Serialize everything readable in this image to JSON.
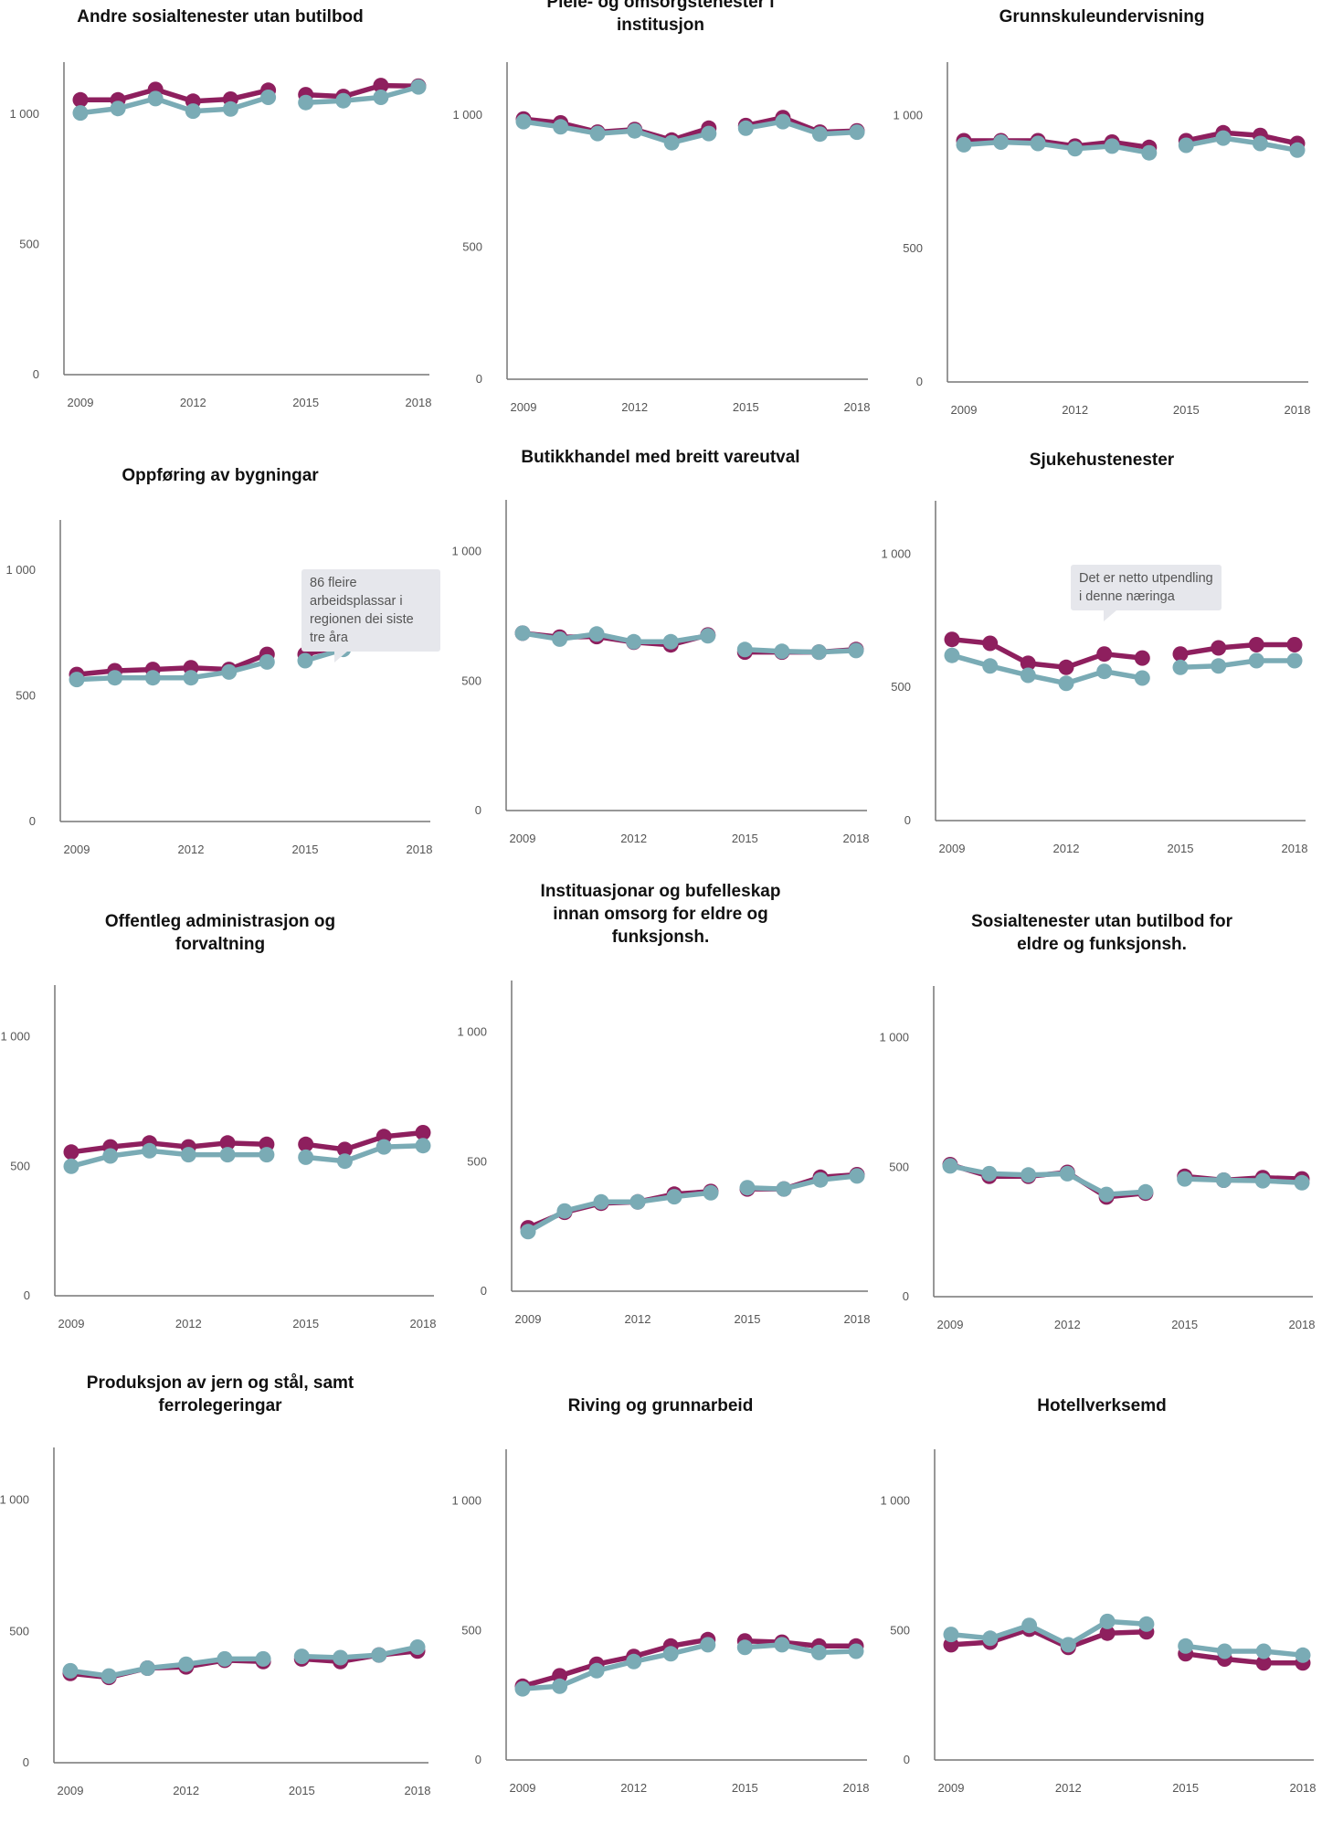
{
  "colors": {
    "series_a": "#8e1f5e",
    "series_b": "#7aabb5",
    "axis": "#777777"
  },
  "chart_data": [
    {
      "type": "line",
      "title": "Andre sosialtenester utan butilbod",
      "x": [
        2009,
        2010,
        2011,
        2012,
        2013,
        2014,
        2015,
        2016,
        2017,
        2018
      ],
      "ylim": [
        0,
        1200
      ],
      "yticks": [
        0,
        500,
        1000
      ],
      "ytick_labels": [
        "0",
        "500",
        "1 000"
      ],
      "xticks": [
        2009,
        2012,
        2015,
        2018
      ],
      "xtick_labels": [
        "2009",
        "2012",
        "2015",
        "2018"
      ],
      "series": [
        {
          "color": "#8e1f5e",
          "values": [
            1055,
            1055,
            1095,
            1050,
            1058,
            1092,
            1075,
            1068,
            1110,
            1108
          ]
        },
        {
          "color": "#7aabb5",
          "values": [
            1005,
            1022,
            1060,
            1012,
            1020,
            1065,
            1045,
            1052,
            1065,
            1105
          ]
        }
      ]
    },
    {
      "type": "line",
      "title": "Pleie- og omsorgstenester i\ninstitusjon",
      "x": [
        2009,
        2010,
        2011,
        2012,
        2013,
        2014,
        2015,
        2016,
        2017,
        2018
      ],
      "ylim": [
        0,
        1200
      ],
      "yticks": [
        0,
        500,
        1000
      ],
      "ytick_labels": [
        "0",
        "500",
        "1 000"
      ],
      "xticks": [
        2009,
        2012,
        2015,
        2018
      ],
      "xtick_labels": [
        "2009",
        "2012",
        "2015",
        "2018"
      ],
      "series": [
        {
          "color": "#8e1f5e",
          "values": [
            985,
            970,
            935,
            945,
            905,
            950,
            960,
            990,
            935,
            940
          ]
        },
        {
          "color": "#7aabb5",
          "values": [
            975,
            955,
            930,
            940,
            895,
            930,
            950,
            975,
            928,
            935
          ]
        }
      ]
    },
    {
      "type": "line",
      "title": "Grunnskuleundervisning",
      "x": [
        2009,
        2010,
        2011,
        2012,
        2013,
        2014,
        2015,
        2016,
        2017,
        2018
      ],
      "ylim": [
        0,
        1200
      ],
      "yticks": [
        0,
        500,
        1000
      ],
      "ytick_labels": [
        "0",
        "500",
        "1 000"
      ],
      "xticks": [
        2009,
        2012,
        2015,
        2018
      ],
      "xtick_labels": [
        "2009",
        "2012",
        "2015",
        "2018"
      ],
      "series": [
        {
          "color": "#8e1f5e",
          "values": [
            905,
            905,
            905,
            885,
            900,
            880,
            905,
            935,
            925,
            895
          ]
        },
        {
          "color": "#7aabb5",
          "values": [
            890,
            900,
            895,
            875,
            885,
            860,
            888,
            915,
            895,
            870
          ]
        }
      ]
    },
    {
      "type": "line",
      "title": "Oppføring av bygningar",
      "x": [
        2009,
        2010,
        2011,
        2012,
        2013,
        2014,
        2015,
        2016,
        2017,
        2018
      ],
      "ylim": [
        0,
        1200
      ],
      "yticks": [
        0,
        500,
        1000
      ],
      "ytick_labels": [
        "0",
        "500",
        "1 000"
      ],
      "xticks": [
        2009,
        2012,
        2015,
        2018
      ],
      "xtick_labels": [
        "2009",
        "2012",
        "2015",
        "2018"
      ],
      "annotation": "86 fleire arbeidsplassar i\nregionen dei siste tre åra",
      "series": [
        {
          "color": "#8e1f5e",
          "values": [
            585,
            600,
            605,
            612,
            605,
            665,
            665,
            700,
            730,
            742
          ]
        },
        {
          "color": "#7aabb5",
          "values": [
            565,
            572,
            572,
            572,
            595,
            635,
            640,
            685,
            715,
            722
          ]
        }
      ]
    },
    {
      "type": "line",
      "title": "Butikkhandel med breitt vareutval",
      "x": [
        2009,
        2010,
        2011,
        2012,
        2013,
        2014,
        2015,
        2016,
        2017,
        2018
      ],
      "ylim": [
        0,
        1200
      ],
      "yticks": [
        0,
        500,
        1000
      ],
      "ytick_labels": [
        "0",
        "500",
        "1 000"
      ],
      "xticks": [
        2009,
        2012,
        2015,
        2018
      ],
      "xtick_labels": [
        "2009",
        "2012",
        "2015",
        "2018"
      ],
      "series": [
        {
          "color": "#8e1f5e",
          "values": [
            685,
            670,
            672,
            650,
            640,
            678,
            612,
            612,
            612,
            622
          ]
        },
        {
          "color": "#7aabb5",
          "values": [
            685,
            662,
            682,
            652,
            652,
            675,
            622,
            615,
            612,
            618
          ]
        }
      ]
    },
    {
      "type": "line",
      "title": "Sjukehustenester",
      "x": [
        2009,
        2010,
        2011,
        2012,
        2013,
        2014,
        2015,
        2016,
        2017,
        2018
      ],
      "ylim": [
        0,
        1200
      ],
      "yticks": [
        0,
        500,
        1000
      ],
      "ytick_labels": [
        "0",
        "500",
        "1 000"
      ],
      "xticks": [
        2009,
        2012,
        2015,
        2018
      ],
      "xtick_labels": [
        "2009",
        "2012",
        "2015",
        "2018"
      ],
      "annotation": "Det er netto utpendling\ni denne næringa",
      "series": [
        {
          "color": "#8e1f5e",
          "values": [
            680,
            665,
            590,
            575,
            625,
            610,
            625,
            648,
            660,
            660
          ]
        },
        {
          "color": "#7aabb5",
          "values": [
            620,
            580,
            545,
            515,
            560,
            535,
            575,
            580,
            600,
            600
          ]
        }
      ]
    },
    {
      "type": "line",
      "title": "Offentleg administrasjon og\nforvaltning",
      "x": [
        2009,
        2010,
        2011,
        2012,
        2013,
        2014,
        2015,
        2016,
        2017,
        2018
      ],
      "ylim": [
        0,
        1200
      ],
      "yticks": [
        0,
        500,
        1000
      ],
      "ytick_labels": [
        "0",
        "500",
        "1 000"
      ],
      "xticks": [
        2009,
        2012,
        2015,
        2018
      ],
      "xtick_labels": [
        "2009",
        "2012",
        "2015",
        "2018"
      ],
      "series": [
        {
          "color": "#8e1f5e",
          "values": [
            555,
            575,
            590,
            575,
            590,
            585,
            585,
            565,
            615,
            630
          ]
        },
        {
          "color": "#7aabb5",
          "values": [
            500,
            540,
            560,
            545,
            545,
            545,
            535,
            520,
            575,
            580
          ]
        }
      ]
    },
    {
      "type": "line",
      "title": "Instituasjonar og bufelleskap\ninnan omsorg for eldre og\nfunksjonsh.",
      "x": [
        2009,
        2010,
        2011,
        2012,
        2013,
        2014,
        2015,
        2016,
        2017,
        2018
      ],
      "ylim": [
        0,
        1200
      ],
      "yticks": [
        0,
        500,
        1000
      ],
      "ytick_labels": [
        "0",
        "500",
        "1 000"
      ],
      "xticks": [
        2009,
        2012,
        2015,
        2018
      ],
      "xtick_labels": [
        "2009",
        "2012",
        "2015",
        "2018"
      ],
      "series": [
        {
          "color": "#8e1f5e",
          "values": [
            245,
            305,
            340,
            345,
            375,
            385,
            395,
            395,
            440,
            450
          ]
        },
        {
          "color": "#7aabb5",
          "values": [
            230,
            310,
            345,
            345,
            365,
            380,
            400,
            395,
            430,
            445
          ]
        }
      ]
    },
    {
      "type": "line",
      "title": "Sosialtenester utan butilbod for\neldre og funksjonsh.",
      "x": [
        2009,
        2010,
        2011,
        2012,
        2013,
        2014,
        2015,
        2016,
        2017,
        2018
      ],
      "ylim": [
        0,
        1200
      ],
      "yticks": [
        0,
        500,
        1000
      ],
      "ytick_labels": [
        "0",
        "500",
        "1 000"
      ],
      "xticks": [
        2009,
        2012,
        2015,
        2018
      ],
      "xtick_labels": [
        "2009",
        "2012",
        "2015",
        "2018"
      ],
      "series": [
        {
          "color": "#8e1f5e",
          "values": [
            510,
            465,
            465,
            480,
            385,
            400,
            465,
            450,
            460,
            455
          ]
        },
        {
          "color": "#7aabb5",
          "values": [
            505,
            475,
            470,
            475,
            395,
            405,
            455,
            450,
            448,
            440
          ]
        }
      ]
    },
    {
      "type": "line",
      "title": "Produksjon av jern og stål, samt\nferrolegeringar",
      "x": [
        2009,
        2010,
        2011,
        2012,
        2013,
        2014,
        2015,
        2016,
        2017,
        2018
      ],
      "ylim": [
        0,
        1200
      ],
      "yticks": [
        0,
        500,
        1000
      ],
      "ytick_labels": [
        "0",
        "500",
        "1 000"
      ],
      "xticks": [
        2009,
        2012,
        2015,
        2018
      ],
      "xtick_labels": [
        "2009",
        "2012",
        "2015",
        "2018"
      ],
      "series": [
        {
          "color": "#8e1f5e",
          "values": [
            340,
            325,
            360,
            365,
            390,
            385,
            395,
            385,
            410,
            425
          ]
        },
        {
          "color": "#7aabb5",
          "values": [
            350,
            330,
            360,
            375,
            395,
            395,
            405,
            400,
            410,
            440
          ]
        }
      ]
    },
    {
      "type": "line",
      "title": "Riving og grunnarbeid",
      "x": [
        2009,
        2010,
        2011,
        2012,
        2013,
        2014,
        2015,
        2016,
        2017,
        2018
      ],
      "ylim": [
        0,
        1200
      ],
      "yticks": [
        0,
        500,
        1000
      ],
      "ytick_labels": [
        "0",
        "500",
        "1 000"
      ],
      "xticks": [
        2009,
        2012,
        2015,
        2018
      ],
      "xtick_labels": [
        "2009",
        "2012",
        "2015",
        "2018"
      ],
      "series": [
        {
          "color": "#8e1f5e",
          "values": [
            285,
            325,
            370,
            400,
            440,
            465,
            460,
            455,
            440,
            440
          ]
        },
        {
          "color": "#7aabb5",
          "values": [
            275,
            285,
            345,
            380,
            410,
            445,
            435,
            445,
            415,
            420
          ]
        }
      ]
    },
    {
      "type": "line",
      "title": "Hotellverksemd",
      "x": [
        2009,
        2010,
        2011,
        2012,
        2013,
        2014,
        2015,
        2016,
        2017,
        2018
      ],
      "ylim": [
        0,
        1200
      ],
      "yticks": [
        0,
        500,
        1000
      ],
      "ytick_labels": [
        "0",
        "500",
        "1 000"
      ],
      "xticks": [
        2009,
        2012,
        2015,
        2018
      ],
      "xtick_labels": [
        "2009",
        "2012",
        "2015",
        "2018"
      ],
      "series": [
        {
          "color": "#8e1f5e",
          "values": [
            445,
            455,
            505,
            435,
            490,
            495,
            410,
            390,
            375,
            375
          ]
        },
        {
          "color": "#7aabb5",
          "values": [
            485,
            470,
            520,
            445,
            535,
            525,
            440,
            420,
            420,
            405
          ]
        }
      ]
    }
  ]
}
